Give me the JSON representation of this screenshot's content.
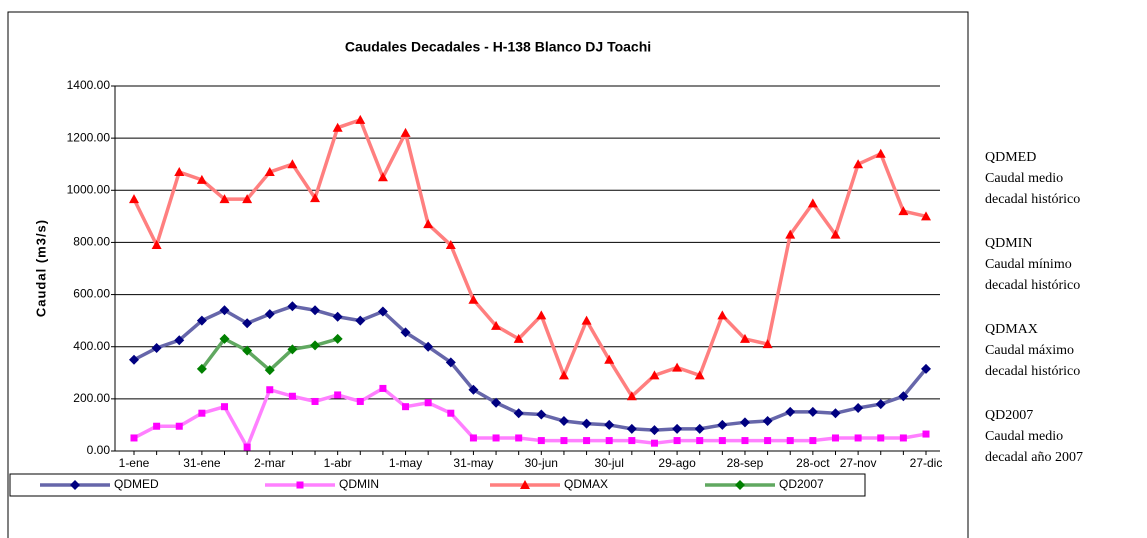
{
  "chart_data": {
    "type": "line",
    "title": "Caudales Decadales - H-138 Blanco DJ Toachi",
    "y_label": "Caudal (m3/s)",
    "categories": [
      "1-ene",
      null,
      null,
      "31-ene",
      null,
      null,
      "2-mar",
      null,
      null,
      "1-abr",
      null,
      null,
      "1-may",
      null,
      null,
      "31-may",
      null,
      null,
      "30-jun",
      null,
      null,
      "30-jul",
      null,
      null,
      "29-ago",
      null,
      null,
      "28-sep",
      null,
      null,
      "28-oct",
      null,
      "27-nov",
      null,
      null,
      "27-dic"
    ],
    "ylim": [
      0,
      1400
    ],
    "yticks": [
      {
        "value": 0,
        "label": "0.00"
      },
      {
        "value": 200,
        "label": "200.00"
      },
      {
        "value": 400,
        "label": "400.00"
      },
      {
        "value": 600,
        "label": "600.00"
      },
      {
        "value": 800,
        "label": "800.00"
      },
      {
        "value": 1000,
        "label": "1000.00"
      },
      {
        "value": 1200,
        "label": "1200.00"
      },
      {
        "value": 1400,
        "label": "1400.00"
      }
    ],
    "grid": true,
    "legend": "bottom",
    "series": [
      {
        "name": "QDMED",
        "color": "#6666aa",
        "marker_color": "#000080",
        "marker": "diamond",
        "values": [
          350,
          395,
          425,
          500,
          540,
          490,
          525,
          555,
          540,
          515,
          500,
          535,
          455,
          400,
          340,
          235,
          185,
          145,
          140,
          115,
          105,
          100,
          85,
          80,
          85,
          85,
          100,
          110,
          115,
          150,
          150,
          145,
          165,
          180,
          210,
          315
        ]
      },
      {
        "name": "QDMIN",
        "color": "#ff80ff",
        "marker_color": "#ff00ff",
        "marker": "square",
        "values": [
          50,
          95,
          95,
          145,
          170,
          15,
          235,
          210,
          190,
          215,
          190,
          240,
          170,
          185,
          145,
          50,
          50,
          50,
          40,
          40,
          40,
          40,
          40,
          30,
          40,
          40,
          40,
          40,
          40,
          40,
          40,
          50,
          50,
          50,
          50,
          65
        ]
      },
      {
        "name": "QDMAX",
        "color": "#ff7f7f",
        "marker_color": "#ff0000",
        "marker": "triangle",
        "values": [
          966,
          790,
          1070,
          1040,
          966,
          966,
          1070,
          1100,
          970,
          1240,
          1270,
          1050,
          1220,
          870,
          790,
          580,
          480,
          430,
          520,
          290,
          500,
          350,
          210,
          290,
          320,
          290,
          520,
          430,
          410,
          830,
          950,
          830,
          1100,
          1140,
          920,
          900
        ]
      },
      {
        "name": "QD2007",
        "color": "#60a860",
        "marker_color": "#008000",
        "marker": "diamond",
        "values": [
          null,
          null,
          null,
          315,
          430,
          385,
          310,
          390,
          405,
          430,
          null,
          null,
          null,
          null,
          null,
          null,
          null,
          null,
          null,
          null,
          null,
          null,
          null,
          null,
          null,
          null,
          null,
          null,
          null,
          null,
          null,
          null,
          null,
          null,
          null,
          null
        ]
      }
    ],
    "notes": [
      {
        "code": "QDMED",
        "lines": [
          "Caudal medio",
          "decadal histórico"
        ]
      },
      {
        "code": "QDMIN",
        "lines": [
          "Caudal mínimo",
          "decadal histórico"
        ]
      },
      {
        "code": "QDMAX",
        "lines": [
          "Caudal máximo",
          "decadal histórico"
        ]
      },
      {
        "code": "QD2007",
        "lines": [
          "Caudal medio",
          "decadal año 2007"
        ]
      }
    ]
  }
}
